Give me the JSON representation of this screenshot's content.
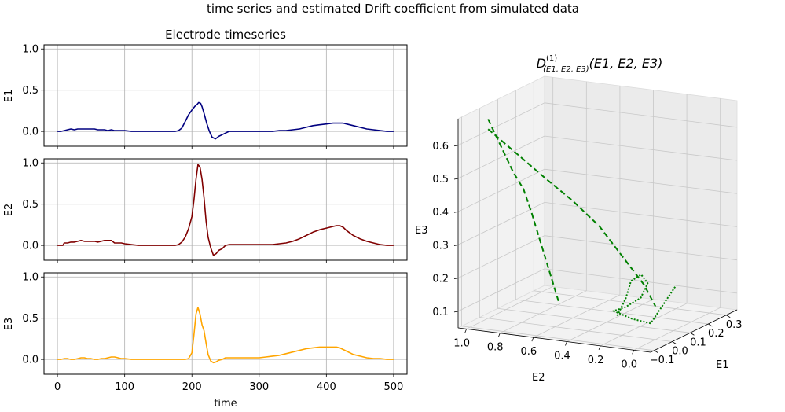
{
  "figure": {
    "suptitle": "time series and estimated Drift coefficient from simulated data"
  },
  "chart_data": [
    {
      "type": "line",
      "title": "Electrode timeseries",
      "panel": "E1",
      "ylabel": "E1",
      "xlabel": "",
      "xlim": [
        -20,
        520
      ],
      "ylim": [
        -0.18,
        1.05
      ],
      "xticks": [
        0,
        100,
        200,
        300,
        400,
        500
      ],
      "yticks": [
        0.0,
        0.5,
        1.0
      ],
      "grid": true,
      "color": "#000080",
      "x": [
        0,
        5,
        10,
        15,
        20,
        25,
        30,
        35,
        40,
        45,
        50,
        55,
        60,
        65,
        70,
        75,
        80,
        85,
        90,
        95,
        100,
        110,
        120,
        130,
        140,
        150,
        160,
        170,
        175,
        180,
        185,
        190,
        195,
        200,
        205,
        208,
        210,
        213,
        215,
        218,
        222,
        226,
        230,
        235,
        240,
        245,
        250,
        255,
        260,
        270,
        280,
        290,
        300,
        310,
        320,
        330,
        340,
        350,
        360,
        370,
        380,
        390,
        400,
        410,
        420,
        425,
        430,
        440,
        450,
        460,
        470,
        480,
        490,
        500
      ],
      "series": [
        {
          "values": [
            0.0,
            0.0,
            0.01,
            0.02,
            0.03,
            0.02,
            0.03,
            0.03,
            0.03,
            0.03,
            0.03,
            0.03,
            0.02,
            0.02,
            0.02,
            0.01,
            0.02,
            0.01,
            0.01,
            0.01,
            0.01,
            0.0,
            0.0,
            0.0,
            0.0,
            0.0,
            0.0,
            0.0,
            0.0,
            0.01,
            0.04,
            0.12,
            0.2,
            0.26,
            0.31,
            0.33,
            0.35,
            0.34,
            0.3,
            0.22,
            0.1,
            0.0,
            -0.07,
            -0.09,
            -0.06,
            -0.04,
            -0.02,
            0.0,
            0.0,
            0.0,
            0.0,
            0.0,
            0.0,
            0.0,
            0.0,
            0.01,
            0.01,
            0.02,
            0.03,
            0.05,
            0.07,
            0.08,
            0.09,
            0.1,
            0.1,
            0.1,
            0.09,
            0.07,
            0.05,
            0.03,
            0.02,
            0.01,
            0.0,
            0.0
          ]
        }
      ]
    },
    {
      "type": "line",
      "panel": "E2",
      "ylabel": "E2",
      "xlabel": "",
      "xlim": [
        -20,
        520
      ],
      "ylim": [
        -0.18,
        1.05
      ],
      "xticks": [
        0,
        100,
        200,
        300,
        400,
        500
      ],
      "yticks": [
        0.0,
        0.5,
        1.0
      ],
      "grid": true,
      "color": "#800000",
      "x": [
        0,
        5,
        8,
        10,
        15,
        20,
        25,
        30,
        35,
        40,
        45,
        50,
        55,
        60,
        65,
        70,
        75,
        80,
        85,
        90,
        95,
        100,
        110,
        120,
        130,
        140,
        150,
        160,
        170,
        175,
        180,
        185,
        190,
        195,
        200,
        203,
        206,
        209,
        212,
        215,
        218,
        221,
        224,
        228,
        232,
        236,
        240,
        245,
        250,
        255,
        260,
        270,
        280,
        290,
        300,
        310,
        320,
        330,
        340,
        350,
        360,
        370,
        380,
        390,
        400,
        410,
        415,
        420,
        425,
        430,
        440,
        450,
        460,
        470,
        480,
        490,
        500
      ],
      "series": [
        {
          "values": [
            0.0,
            0.0,
            0.0,
            0.03,
            0.03,
            0.04,
            0.04,
            0.05,
            0.06,
            0.05,
            0.05,
            0.05,
            0.05,
            0.04,
            0.05,
            0.06,
            0.06,
            0.06,
            0.03,
            0.03,
            0.03,
            0.02,
            0.01,
            0.0,
            0.0,
            0.0,
            0.0,
            0.0,
            0.0,
            0.0,
            0.01,
            0.04,
            0.1,
            0.2,
            0.35,
            0.55,
            0.8,
            0.98,
            0.95,
            0.8,
            0.58,
            0.3,
            0.1,
            -0.03,
            -0.12,
            -0.1,
            -0.06,
            -0.04,
            0.0,
            0.01,
            0.01,
            0.01,
            0.01,
            0.01,
            0.01,
            0.01,
            0.01,
            0.02,
            0.03,
            0.05,
            0.08,
            0.12,
            0.16,
            0.19,
            0.21,
            0.23,
            0.24,
            0.24,
            0.22,
            0.18,
            0.12,
            0.08,
            0.05,
            0.03,
            0.01,
            0.0,
            0.0
          ]
        }
      ]
    },
    {
      "type": "line",
      "panel": "E3",
      "ylabel": "E3",
      "xlabel": "time",
      "xlim": [
        -20,
        520
      ],
      "ylim": [
        -0.18,
        1.05
      ],
      "xticks": [
        0,
        100,
        200,
        300,
        400,
        500
      ],
      "yticks": [
        0.0,
        0.5,
        1.0
      ],
      "grid": true,
      "color": "#FFA500",
      "x": [
        0,
        5,
        10,
        15,
        20,
        25,
        30,
        35,
        40,
        45,
        50,
        55,
        60,
        65,
        70,
        75,
        80,
        85,
        90,
        95,
        100,
        110,
        120,
        130,
        140,
        150,
        160,
        170,
        180,
        190,
        195,
        200,
        203,
        206,
        209,
        212,
        215,
        218,
        221,
        224,
        228,
        232,
        236,
        240,
        245,
        250,
        255,
        260,
        270,
        280,
        290,
        300,
        310,
        320,
        330,
        340,
        350,
        360,
        370,
        380,
        390,
        400,
        410,
        415,
        420,
        425,
        430,
        440,
        450,
        460,
        470,
        480,
        490,
        500
      ],
      "series": [
        {
          "values": [
            0.0,
            0.0,
            0.01,
            0.01,
            0.0,
            0.0,
            0.01,
            0.02,
            0.02,
            0.01,
            0.01,
            0.0,
            0.0,
            0.01,
            0.01,
            0.02,
            0.03,
            0.03,
            0.02,
            0.01,
            0.01,
            0.0,
            0.0,
            0.0,
            0.0,
            0.0,
            0.0,
            0.0,
            0.0,
            0.0,
            0.01,
            0.08,
            0.3,
            0.55,
            0.63,
            0.55,
            0.42,
            0.35,
            0.2,
            0.06,
            -0.02,
            -0.04,
            -0.03,
            -0.01,
            0.0,
            0.02,
            0.02,
            0.02,
            0.02,
            0.02,
            0.02,
            0.02,
            0.03,
            0.04,
            0.05,
            0.07,
            0.09,
            0.11,
            0.13,
            0.14,
            0.15,
            0.15,
            0.15,
            0.15,
            0.14,
            0.12,
            0.1,
            0.06,
            0.04,
            0.02,
            0.01,
            0.01,
            0.0,
            0.0
          ]
        }
      ]
    },
    {
      "type": "line3d",
      "title": "D^{(1)}_{(E1,E2,E3)}(E1,E2,E3)",
      "title_parts": {
        "base": "D",
        "sup": "(1)",
        "sub": "(E1, E2, E3)",
        "args": "(E1, E2, E3)"
      },
      "xlabel": "E1",
      "ylabel": "E2",
      "zlabel": "E3",
      "xticks": [
        -0.1,
        0.0,
        0.1,
        0.2,
        0.3
      ],
      "xtick_labels": [
        "−0.1",
        "0.0",
        "0.1",
        "0.2",
        "0.3"
      ],
      "yticks": [
        1.0,
        0.8,
        0.6,
        0.4,
        0.2,
        0.0
      ],
      "ytick_labels": [
        "1.0",
        "0.8",
        "0.6",
        "0.4",
        "0.2",
        "0.0"
      ],
      "zticks": [
        0.1,
        0.2,
        0.3,
        0.4,
        0.5,
        0.6
      ],
      "ztick_labels": [
        "0.1",
        "0.2",
        "0.3",
        "0.4",
        "0.5",
        "0.6"
      ],
      "xlim": [
        -0.12,
        0.36
      ],
      "ylim": [
        -0.1,
        1.05
      ],
      "zlim": [
        0.05,
        0.68
      ],
      "grid": true,
      "color": "#008000",
      "series": [
        {
          "style": "dashed",
          "x": [
            0.0,
            0.0,
            0.0,
            0.0,
            0.01,
            0.01,
            0.01,
            0.02,
            0.02
          ],
          "y": [
            1.0,
            0.95,
            0.9,
            0.85,
            0.8,
            0.75,
            0.7,
            0.65,
            0.6
          ],
          "z": [
            0.65,
            0.6,
            0.55,
            0.5,
            0.45,
            0.38,
            0.3,
            0.2,
            0.12
          ]
        },
        {
          "style": "dashed",
          "x": [
            0.0,
            0.02,
            0.04,
            0.05,
            0.06,
            0.05,
            0.04,
            0.03,
            0.0
          ],
          "y": [
            1.0,
            0.85,
            0.7,
            0.55,
            0.4,
            0.3,
            0.2,
            0.1,
            0.0
          ],
          "z": [
            0.62,
            0.55,
            0.48,
            0.42,
            0.35,
            0.3,
            0.25,
            0.2,
            0.15
          ]
        },
        {
          "style": "dotted",
          "x": [
            0.02,
            0.04,
            0.05,
            0.06,
            0.05,
            0.03,
            0.02,
            0.0,
            0.01,
            0.02,
            0.3
          ],
          "y": [
            0.25,
            0.22,
            0.2,
            0.15,
            0.1,
            0.12,
            0.2,
            0.25,
            0.15,
            0.05,
            0.2
          ],
          "z": [
            0.1,
            0.15,
            0.2,
            0.22,
            0.2,
            0.16,
            0.13,
            0.12,
            0.1,
            0.09,
            0.12
          ]
        }
      ]
    }
  ]
}
